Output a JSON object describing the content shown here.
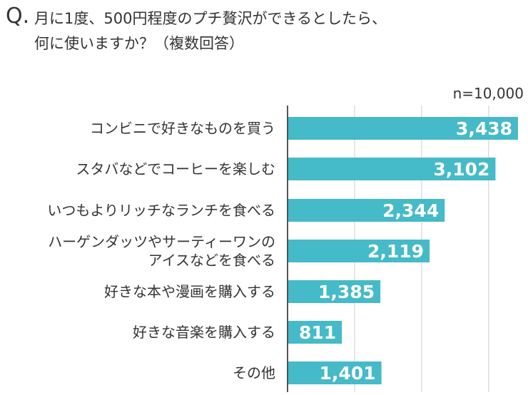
{
  "question": {
    "mark": "Q.",
    "line1": "月に1度、500円程度のプチ贅沢ができるとしたら、",
    "line2": "何に使いますか？（複数回答）"
  },
  "sample_label": "n=10,000",
  "colors": {
    "bar": "#45bac8",
    "gridline": "#cccccc",
    "axis": "#555555",
    "value_text": "#ffffff",
    "label_text": "#333333"
  },
  "chart_data": {
    "type": "bar",
    "orientation": "horizontal",
    "categories": [
      [
        "コンビニで好きなものを買う"
      ],
      [
        "スタバなどでコーヒーを楽しむ"
      ],
      [
        "いつもよりリッチなランチを食べる"
      ],
      [
        "ハーゲンダッツやサーティーワンの",
        "アイスなどを食べる"
      ],
      [
        "好きな本や漫画を購入する"
      ],
      [
        "好きな音楽を購入する"
      ],
      [
        "その他"
      ]
    ],
    "values": [
      3438,
      3102,
      2344,
      2119,
      1385,
      811,
      1401
    ],
    "value_labels": [
      "3,438",
      "3,102",
      "2,344",
      "2,119",
      "1,385",
      "811",
      "1,401"
    ],
    "xlim": [
      0,
      3500
    ],
    "gridlines": [
      1000,
      2000,
      3000
    ],
    "grid": true,
    "legend": "none"
  }
}
